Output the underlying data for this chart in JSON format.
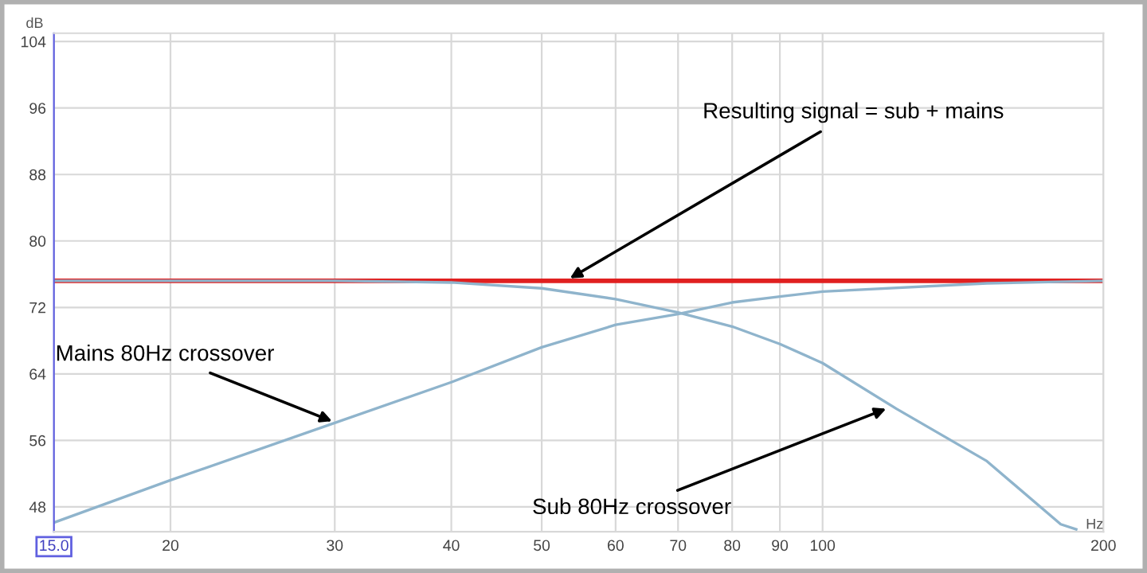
{
  "chart_data": {
    "type": "line",
    "xlabel": "Hz",
    "ylabel": "dB",
    "log": "x",
    "grid": true,
    "legend": false,
    "xlim": [
      15,
      200
    ],
    "ylim": [
      45,
      105
    ],
    "xticks": [
      {
        "value": 15,
        "label": "15.0"
      },
      20,
      30,
      40,
      50,
      60,
      70,
      80,
      90,
      100,
      200
    ],
    "yticks": [
      48,
      56,
      64,
      72,
      80,
      88,
      96,
      104
    ],
    "series": [
      {
        "color": "#e02020",
        "x": [
          15,
          200
        ],
        "values": [
          75.2,
          75.2
        ]
      },
      {
        "color": "#8fb4cc",
        "x": [
          15,
          20,
          30,
          40,
          50,
          60,
          70,
          80,
          90,
          100,
          150,
          200
        ],
        "values": [
          46.1,
          51.2,
          58.1,
          63.0,
          67.2,
          69.9,
          71.2,
          72.6,
          73.3,
          73.9,
          74.9,
          75.2
        ]
      },
      {
        "color": "#8fb4cc",
        "x": [
          15,
          20,
          30,
          35,
          40,
          50,
          60,
          70,
          80,
          90,
          100,
          120,
          150,
          180,
          187
        ],
        "values": [
          75.2,
          75.2,
          75.2,
          75.1,
          75.0,
          74.3,
          73.0,
          71.4,
          69.7,
          67.6,
          65.3,
          59.8,
          53.5,
          45.9,
          45.3
        ]
      }
    ],
    "annotations": [
      {
        "text": "Resulting signal = sub + mains",
        "x": 53.6,
        "y": 75.5
      },
      {
        "text": "Mains 80Hz crossover",
        "x": 29.8,
        "y": 58.3
      },
      {
        "text": "Sub 80Hz crossover",
        "x": 117,
        "y": 59.8
      }
    ]
  }
}
